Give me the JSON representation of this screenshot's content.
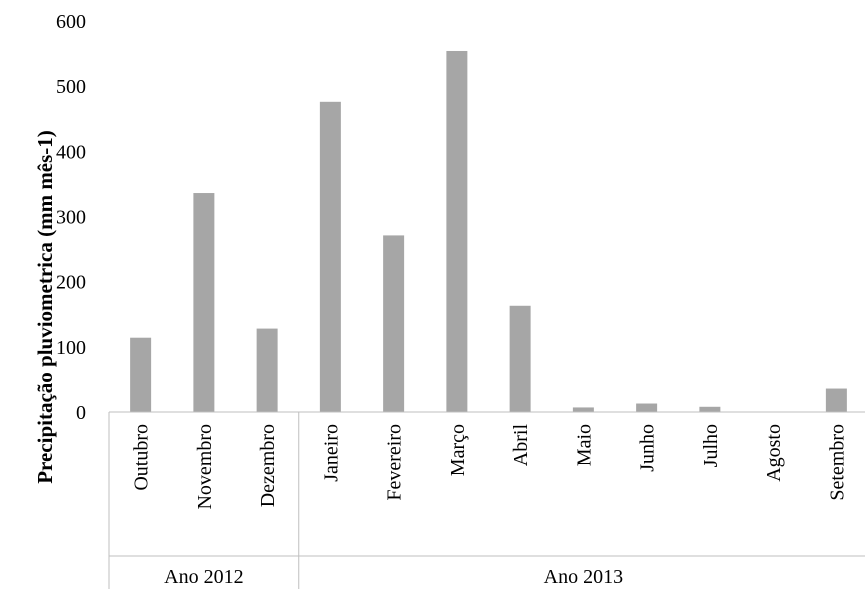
{
  "chart_data": {
    "type": "bar",
    "title": "",
    "xlabel": "",
    "ylabel": "Precipitação pluviometrica (mm mês-1)",
    "ylim": [
      0,
      600
    ],
    "yticks": [
      0,
      100,
      200,
      300,
      400,
      500,
      600
    ],
    "grid": false,
    "categories": [
      "Outubro",
      "Novembro",
      "Dezembro",
      "Janeiro",
      "Fevereiro",
      "Março",
      "Abril",
      "Maio",
      "Junho",
      "Julho",
      "Agosto",
      "Setembro"
    ],
    "groups": [
      {
        "label": "Ano 2012",
        "count": 3
      },
      {
        "label": "Ano 2013",
        "count": 9
      }
    ],
    "series": [
      {
        "values": [
          114,
          336,
          128,
          476,
          271,
          554,
          163,
          7,
          13,
          8,
          0,
          36
        ]
      }
    ],
    "colors": {
      "bar": "#a6a6a6",
      "axis": "#bfbfbf"
    }
  }
}
